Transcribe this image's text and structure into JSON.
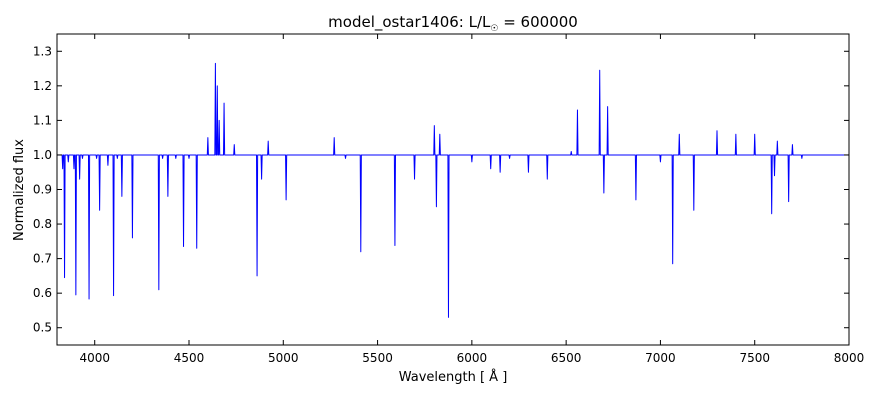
{
  "chart_data": {
    "type": "line",
    "title": "model_ostar1406: L/L",
    "title_sub": "☉",
    "title_suffix": " = 600000",
    "xlabel": "Wavelength [ Å ]",
    "ylabel": "Normalized flux",
    "xlim": [
      3800,
      8000
    ],
    "ylim": [
      0.45,
      1.35
    ],
    "xticks": [
      4000,
      4500,
      5000,
      5500,
      6000,
      6500,
      7000,
      7500,
      8000
    ],
    "yticks": [
      0.5,
      0.6,
      0.7,
      0.8,
      0.9,
      1.0,
      1.1,
      1.2,
      1.3
    ],
    "grid": false,
    "legend": "none",
    "series": [
      {
        "color": "#0000ff",
        "continuum": 1.0,
        "x": [
          3800,
          3830,
          3840,
          3860,
          3890,
          3900,
          3920,
          3935,
          3970,
          4010,
          4026,
          4070,
          4100,
          4120,
          4144,
          4200,
          4340,
          4360,
          4388,
          4430,
          4471,
          4500,
          4541,
          4560,
          4600,
          4640,
          4650,
          4660,
          4686,
          4720,
          4740,
          4861,
          4885,
          4920,
          5015,
          5048,
          5200,
          5270,
          5330,
          5411,
          5592,
          5696,
          5740,
          5801,
          5812,
          5830,
          5876,
          5890,
          6000,
          6100,
          6150,
          6200,
          6300,
          6400,
          6527,
          6560,
          6600,
          6650,
          6678,
          6700,
          6720,
          6740,
          6800,
          6870,
          7000,
          7065,
          7100,
          7177,
          7300,
          7400,
          7500,
          7590,
          7605,
          7620,
          7680,
          7700,
          7750,
          7900,
          8000
        ],
        "y": [
          1.0,
          0.96,
          0.645,
          0.98,
          0.96,
          0.595,
          0.93,
          0.99,
          0.583,
          0.99,
          0.84,
          0.97,
          0.593,
          0.99,
          0.88,
          0.76,
          0.61,
          0.99,
          0.88,
          0.99,
          0.735,
          0.99,
          0.73,
          1.0,
          1.05,
          1.265,
          1.2,
          1.1,
          1.15,
          1.0,
          1.03,
          0.65,
          0.93,
          1.04,
          0.87,
          1.0,
          1.0,
          1.05,
          0.99,
          0.72,
          0.738,
          0.93,
          1.0,
          1.085,
          0.85,
          1.06,
          0.53,
          1.0,
          0.98,
          0.96,
          0.95,
          0.99,
          0.95,
          0.93,
          1.01,
          1.13,
          1.0,
          1.0,
          1.245,
          0.89,
          1.14,
          1.0,
          1.0,
          0.87,
          0.98,
          0.685,
          1.06,
          0.84,
          1.07,
          1.06,
          1.06,
          0.83,
          0.94,
          1.04,
          0.865,
          1.03,
          0.99,
          1.0,
          1.0
        ]
      }
    ]
  }
}
